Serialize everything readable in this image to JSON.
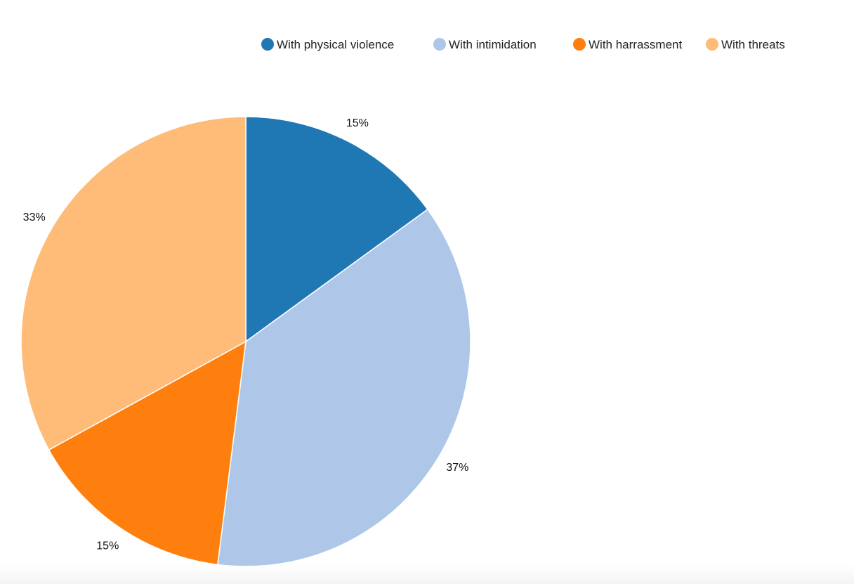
{
  "chart_data": {
    "type": "pie",
    "categories": [
      "With physical violence",
      "With intimidation",
      "With harrassment",
      "With threats"
    ],
    "values": [
      15,
      37,
      15,
      33
    ],
    "labels": [
      "15%",
      "37%",
      "15%",
      "33%"
    ],
    "colors": [
      "#1f77b4",
      "#aec7e8",
      "#ff7f0e",
      "#ffbb78"
    ],
    "legend_position": "top",
    "start_angle": "12 o'clock",
    "direction": "clockwise"
  }
}
